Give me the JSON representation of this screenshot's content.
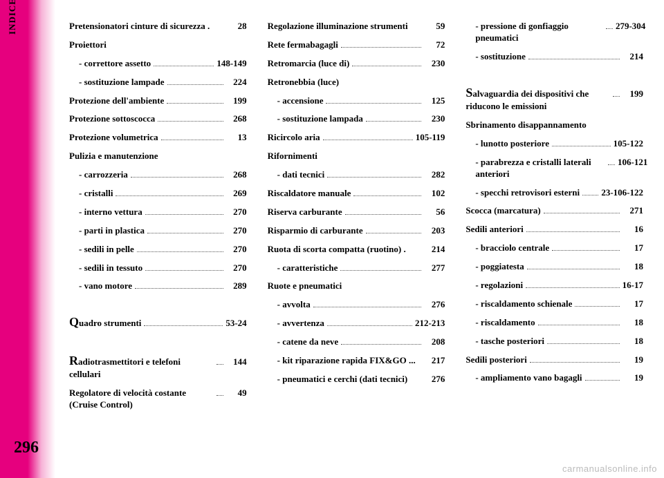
{
  "sidebar_label": "INDICE ALFABETICO",
  "page_number": "296",
  "watermark": "carmanualsonline.info",
  "columns": [
    [
      {
        "label": "Pretensionatori cinture di sicurezza .",
        "page": "28",
        "sub": false,
        "header": false,
        "dots": false
      },
      {
        "label": "Proiettori",
        "page": "",
        "sub": false,
        "header": true,
        "dots": false
      },
      {
        "label": "- correttore assetto",
        "page": "148-149",
        "sub": true,
        "header": false,
        "dots": true
      },
      {
        "label": "- sostituzione lampade",
        "page": "224",
        "sub": true,
        "header": false,
        "dots": true
      },
      {
        "label": "Protezione dell'ambiente",
        "page": "199",
        "sub": false,
        "header": false,
        "dots": true
      },
      {
        "label": "Protezione sottoscocca",
        "page": "268",
        "sub": false,
        "header": false,
        "dots": true
      },
      {
        "label": "Protezione volumetrica",
        "page": "13",
        "sub": false,
        "header": false,
        "dots": true
      },
      {
        "label": "Pulizia e manutenzione",
        "page": "",
        "sub": false,
        "header": true,
        "dots": false
      },
      {
        "label": "- carrozzeria",
        "page": "268",
        "sub": true,
        "header": false,
        "dots": true
      },
      {
        "label": "- cristalli",
        "page": "269",
        "sub": true,
        "header": false,
        "dots": true
      },
      {
        "label": "- interno vettura",
        "page": "270",
        "sub": true,
        "header": false,
        "dots": true
      },
      {
        "label": "- parti in plastica",
        "page": "270",
        "sub": true,
        "header": false,
        "dots": true
      },
      {
        "label": "- sedili in pelle",
        "page": "270",
        "sub": true,
        "header": false,
        "dots": true
      },
      {
        "label": "- sedili in tessuto",
        "page": "270",
        "sub": true,
        "header": false,
        "dots": true
      },
      {
        "label": "- vano motore",
        "page": "289",
        "sub": true,
        "header": false,
        "dots": true
      },
      {
        "label": "",
        "page": "",
        "sub": false,
        "header": true,
        "dots": false
      },
      {
        "label": "Quadro strumenti",
        "page": "53-24",
        "sub": false,
        "header": false,
        "dots": true,
        "bigcap": "Q",
        "rest": "uadro strumenti"
      },
      {
        "label": "",
        "page": "",
        "sub": false,
        "header": true,
        "dots": false
      },
      {
        "label": "Radiotrasmettitori e telefoni cellulari",
        "page": "144",
        "sub": false,
        "header": false,
        "dots": true,
        "bigcap": "R",
        "rest": "adiotrasmettitori e telefoni cellulari"
      },
      {
        "label": "Regolatore di velocità costante (Cruise Control)",
        "page": "49",
        "sub": false,
        "header": false,
        "dots": true
      }
    ],
    [
      {
        "label": "Regolazione illuminazione strumenti",
        "page": "59",
        "sub": false,
        "header": false,
        "dots": false
      },
      {
        "label": "Rete fermabagagli",
        "page": "72",
        "sub": false,
        "header": false,
        "dots": true
      },
      {
        "label": "Retromarcia (luce di)",
        "page": "230",
        "sub": false,
        "header": false,
        "dots": true
      },
      {
        "label": "Retronebbia (luce)",
        "page": "",
        "sub": false,
        "header": true,
        "dots": false
      },
      {
        "label": "- accensione",
        "page": "125",
        "sub": true,
        "header": false,
        "dots": true
      },
      {
        "label": "- sostituzione lampada",
        "page": "230",
        "sub": true,
        "header": false,
        "dots": true
      },
      {
        "label": "Ricircolo aria",
        "page": "105-119",
        "sub": false,
        "header": false,
        "dots": true
      },
      {
        "label": "Rifornimenti",
        "page": "",
        "sub": false,
        "header": true,
        "dots": false
      },
      {
        "label": "- dati tecnici",
        "page": "282",
        "sub": true,
        "header": false,
        "dots": true
      },
      {
        "label": "Riscaldatore manuale",
        "page": "102",
        "sub": false,
        "header": false,
        "dots": true
      },
      {
        "label": "Riserva carburante",
        "page": "56",
        "sub": false,
        "header": false,
        "dots": true
      },
      {
        "label": "Risparmio di carburante",
        "page": "203",
        "sub": false,
        "header": false,
        "dots": true
      },
      {
        "label": "Ruota di scorta compatta (ruotino) .",
        "page": "214",
        "sub": false,
        "header": false,
        "dots": false
      },
      {
        "label": "- caratteristiche",
        "page": "277",
        "sub": true,
        "header": false,
        "dots": true
      },
      {
        "label": "Ruote e pneumatici",
        "page": "",
        "sub": false,
        "header": true,
        "dots": false
      },
      {
        "label": "- avvolta",
        "page": "276",
        "sub": true,
        "header": false,
        "dots": true
      },
      {
        "label": "- avvertenza",
        "page": "212-213",
        "sub": true,
        "header": false,
        "dots": true
      },
      {
        "label": "- catene da neve",
        "page": "208",
        "sub": true,
        "header": false,
        "dots": true
      },
      {
        "label": "- kit riparazione rapida FIX&GO ...",
        "page": "217",
        "sub": true,
        "header": false,
        "dots": false
      },
      {
        "label": "- pneumatici e cerchi (dati tecnici)",
        "page": "276",
        "sub": true,
        "header": false,
        "dots": false
      }
    ],
    [
      {
        "label": "- pressione di gonfiaggio pneumatici",
        "page": "279-304",
        "sub": true,
        "header": false,
        "dots": true
      },
      {
        "label": "- sostituzione",
        "page": "214",
        "sub": true,
        "header": false,
        "dots": true
      },
      {
        "label": "",
        "page": "",
        "sub": false,
        "header": true,
        "dots": false
      },
      {
        "label": "Salvaguardia dei dispositivi che riducono le emissioni",
        "page": "199",
        "sub": false,
        "header": false,
        "dots": true,
        "bigcap": "S",
        "rest": "alvaguardia dei dispositivi che riducono le emissioni"
      },
      {
        "label": "Sbrinamento disappannamento",
        "page": "",
        "sub": false,
        "header": true,
        "dots": false
      },
      {
        "label": "- lunotto posteriore",
        "page": "105-122",
        "sub": true,
        "header": false,
        "dots": true
      },
      {
        "label": "- parabrezza e cristalli laterali anteriori",
        "page": "106-121",
        "sub": true,
        "header": false,
        "dots": true
      },
      {
        "label": "- specchi retrovisori esterni",
        "page": "23-106-122",
        "sub": true,
        "header": false,
        "dots": true
      },
      {
        "label": "Scocca (marcatura)",
        "page": "271",
        "sub": false,
        "header": false,
        "dots": true
      },
      {
        "label": "Sedili anteriori",
        "page": "16",
        "sub": false,
        "header": false,
        "dots": true
      },
      {
        "label": "- bracciolo centrale",
        "page": "17",
        "sub": true,
        "header": false,
        "dots": true
      },
      {
        "label": "- poggiatesta",
        "page": "18",
        "sub": true,
        "header": false,
        "dots": true
      },
      {
        "label": "- regolazioni",
        "page": "16-17",
        "sub": true,
        "header": false,
        "dots": true
      },
      {
        "label": "- riscaldamento schienale",
        "page": "17",
        "sub": true,
        "header": false,
        "dots": true
      },
      {
        "label": "- riscaldamento",
        "page": "18",
        "sub": true,
        "header": false,
        "dots": true
      },
      {
        "label": "- tasche posteriori",
        "page": "18",
        "sub": true,
        "header": false,
        "dots": true
      },
      {
        "label": "Sedili posteriori",
        "page": "19",
        "sub": false,
        "header": false,
        "dots": true
      },
      {
        "label": "- ampliamento vano bagagli",
        "page": "19",
        "sub": true,
        "header": false,
        "dots": true
      }
    ]
  ]
}
